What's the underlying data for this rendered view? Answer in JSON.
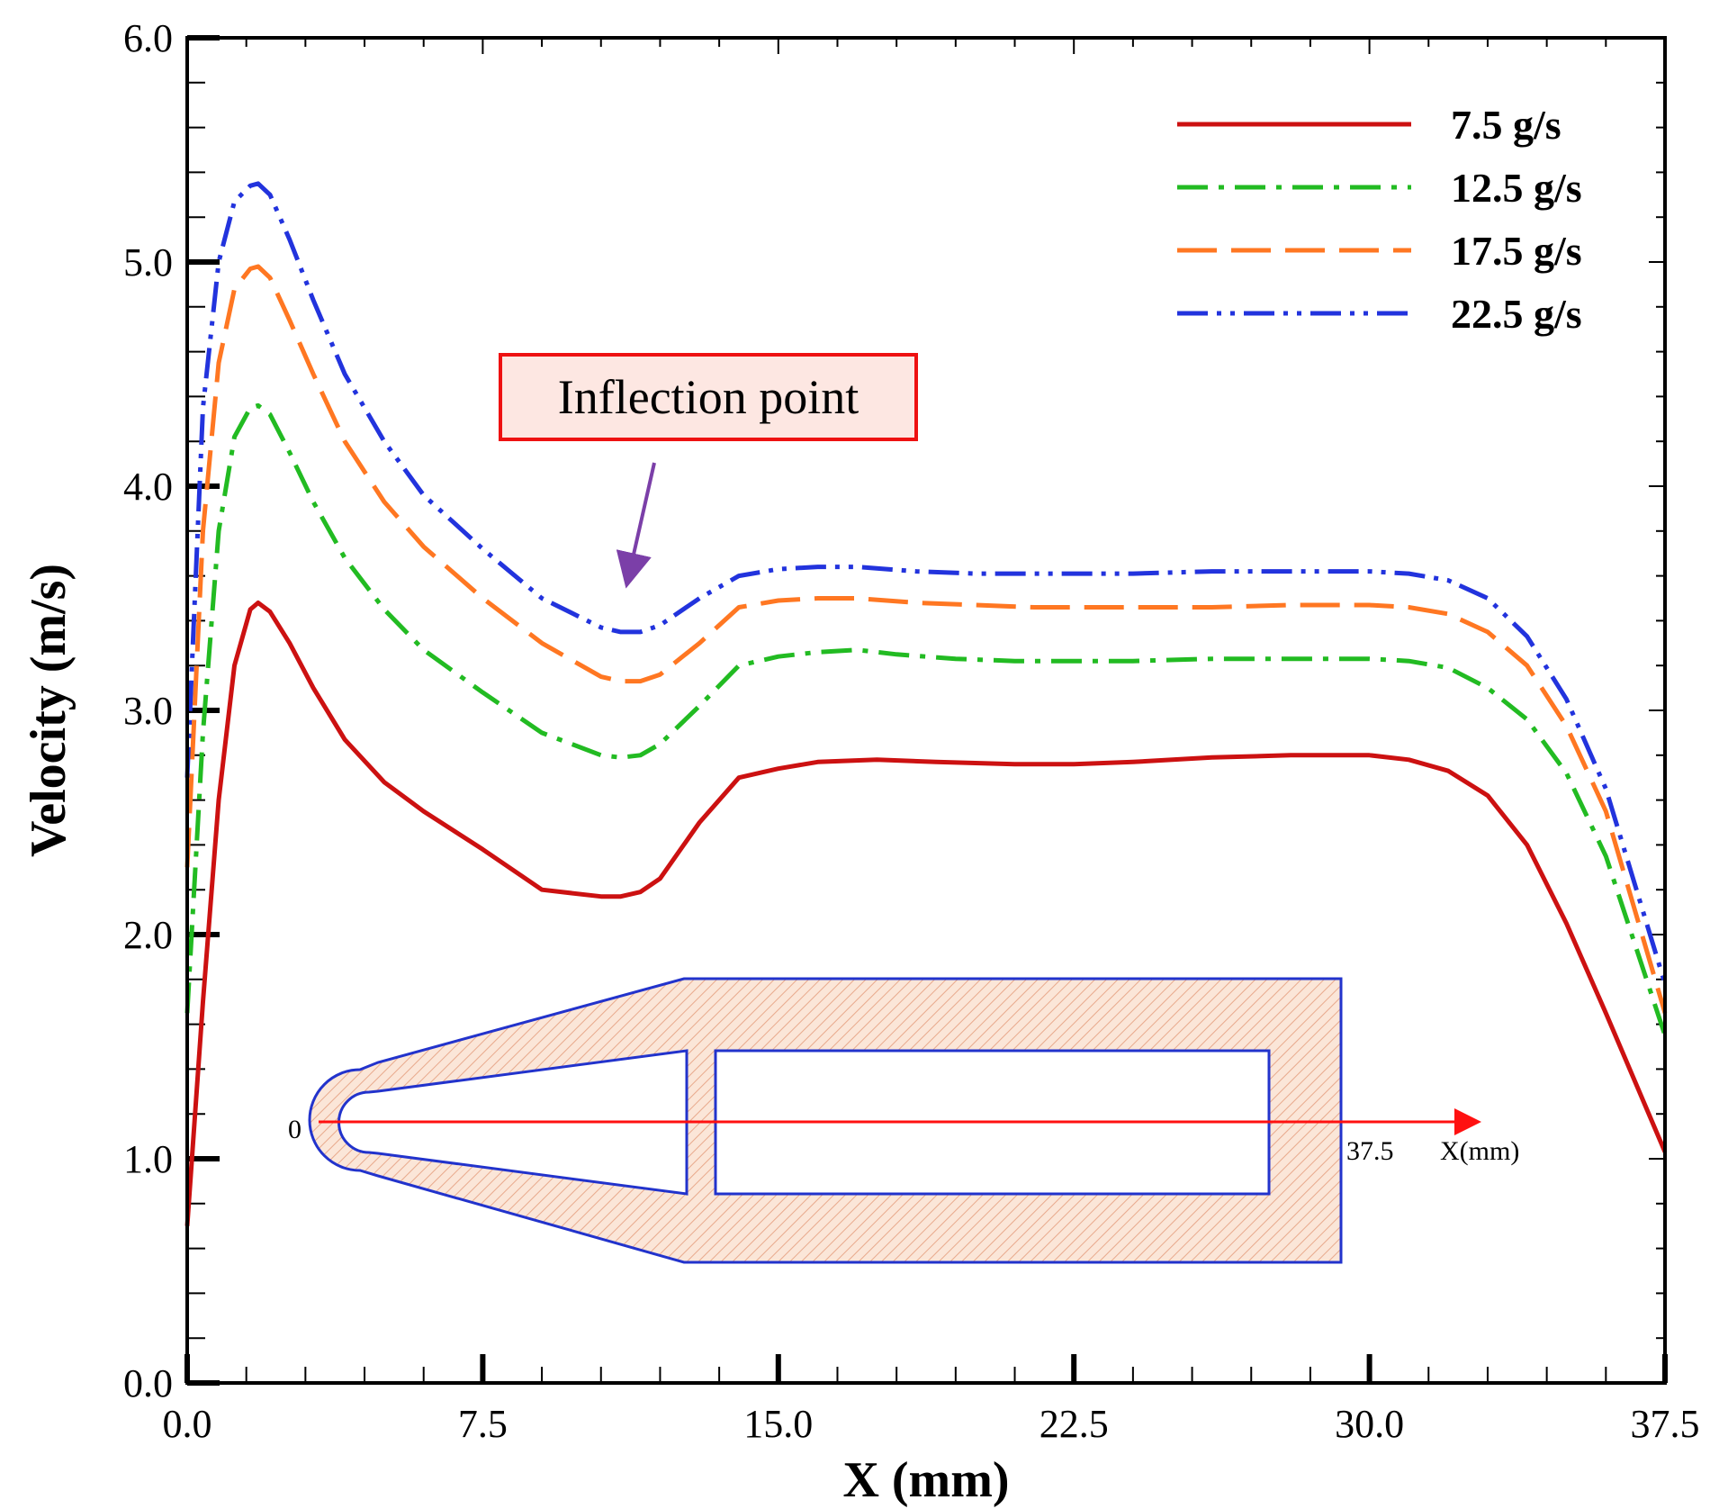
{
  "chart_data": {
    "type": "line",
    "xlabel": "X (mm)",
    "ylabel": "Velocity (m/s)",
    "xlim": [
      0,
      37.5
    ],
    "ylim": [
      0,
      6
    ],
    "x_ticks": [
      "0.0",
      "7.5",
      "15.0",
      "22.5",
      "30.0",
      "37.5"
    ],
    "y_ticks": [
      "0.0",
      "1.0",
      "2.0",
      "3.0",
      "4.0",
      "5.0",
      "6.0"
    ],
    "grid": false,
    "legend": "top-right",
    "series": [
      {
        "name": "7.5 g/s",
        "color": "#cc1111",
        "dash": "solid",
        "x": [
          0,
          0.4,
          0.8,
          1.2,
          1.6,
          1.8,
          2.1,
          2.6,
          3.2,
          4.0,
          5.0,
          6.0,
          7.5,
          9.0,
          10.5,
          11.0,
          11.5,
          12.0,
          13.0,
          14.0,
          15.0,
          16.0,
          17.5,
          19.0,
          21.0,
          22.5,
          24.0,
          26.0,
          28.0,
          30.0,
          31.0,
          32.0,
          33.0,
          34.0,
          35.0,
          36.0,
          37.5
        ],
        "y": [
          0.7,
          1.7,
          2.6,
          3.2,
          3.45,
          3.48,
          3.44,
          3.3,
          3.1,
          2.87,
          2.68,
          2.55,
          2.38,
          2.2,
          2.17,
          2.17,
          2.19,
          2.25,
          2.5,
          2.7,
          2.74,
          2.77,
          2.78,
          2.77,
          2.76,
          2.76,
          2.77,
          2.79,
          2.8,
          2.8,
          2.78,
          2.73,
          2.62,
          2.4,
          2.05,
          1.65,
          1.03
        ]
      },
      {
        "name": "12.5 g/s",
        "color": "#22bb22",
        "dash": "dashdot",
        "x": [
          0,
          0.4,
          0.8,
          1.2,
          1.6,
          1.8,
          2.1,
          2.6,
          3.2,
          4.0,
          5.0,
          6.0,
          7.5,
          9.0,
          10.5,
          11.0,
          11.5,
          12.0,
          13.0,
          14.0,
          15.0,
          16.0,
          17.0,
          18.0,
          19.5,
          21.0,
          22.5,
          24.0,
          26.0,
          28.0,
          30.0,
          31.0,
          32.0,
          33.0,
          34.0,
          35.0,
          36.0,
          37.5
        ],
        "y": [
          1.65,
          2.9,
          3.8,
          4.22,
          4.35,
          4.36,
          4.32,
          4.15,
          3.93,
          3.68,
          3.45,
          3.27,
          3.08,
          2.9,
          2.8,
          2.79,
          2.8,
          2.85,
          3.02,
          3.2,
          3.24,
          3.26,
          3.27,
          3.25,
          3.23,
          3.22,
          3.22,
          3.22,
          3.23,
          3.23,
          3.23,
          3.22,
          3.19,
          3.1,
          2.96,
          2.72,
          2.35,
          1.55
        ]
      },
      {
        "name": "17.5 g/s",
        "color": "#ff7722",
        "dash": "dashed",
        "x": [
          0,
          0.4,
          0.8,
          1.2,
          1.6,
          1.8,
          2.1,
          2.6,
          3.2,
          4.0,
          5.0,
          6.0,
          7.5,
          9.0,
          10.5,
          11.0,
          11.5,
          12.0,
          13.0,
          14.0,
          15.0,
          16.0,
          17.0,
          18.5,
          20.0,
          21.5,
          22.5,
          24.0,
          26.0,
          28.0,
          30.0,
          31.0,
          32.0,
          33.0,
          34.0,
          35.0,
          36.0,
          37.5
        ],
        "y": [
          2.3,
          3.8,
          4.55,
          4.88,
          4.97,
          4.98,
          4.93,
          4.74,
          4.5,
          4.2,
          3.93,
          3.73,
          3.5,
          3.3,
          3.15,
          3.13,
          3.13,
          3.16,
          3.3,
          3.46,
          3.49,
          3.5,
          3.5,
          3.48,
          3.47,
          3.46,
          3.46,
          3.46,
          3.46,
          3.47,
          3.47,
          3.46,
          3.43,
          3.35,
          3.2,
          2.93,
          2.55,
          1.65
        ]
      },
      {
        "name": "22.5 g/s",
        "color": "#2233dd",
        "dash": "dashdotdot",
        "x": [
          0,
          0.4,
          0.8,
          1.2,
          1.6,
          1.8,
          2.1,
          2.6,
          3.2,
          4.0,
          5.0,
          6.0,
          7.5,
          9.0,
          10.5,
          11.0,
          11.5,
          12.0,
          13.0,
          14.0,
          15.0,
          16.0,
          17.0,
          18.5,
          20.0,
          21.5,
          22.5,
          24.0,
          26.0,
          28.0,
          30.0,
          31.0,
          32.0,
          33.0,
          34.0,
          35.0,
          36.0,
          37.5
        ],
        "y": [
          2.7,
          4.35,
          5.0,
          5.27,
          5.34,
          5.35,
          5.3,
          5.1,
          4.83,
          4.5,
          4.2,
          3.96,
          3.72,
          3.5,
          3.37,
          3.35,
          3.35,
          3.38,
          3.5,
          3.6,
          3.63,
          3.64,
          3.64,
          3.62,
          3.61,
          3.61,
          3.61,
          3.61,
          3.62,
          3.62,
          3.62,
          3.61,
          3.58,
          3.5,
          3.33,
          3.05,
          2.65,
          1.78
        ]
      }
    ],
    "annotations": [
      {
        "text": "Inflection point",
        "target_x": 11.2,
        "target_y": 3.55
      }
    ],
    "inset": {
      "origin_label": "0",
      "end_label": "37.5",
      "axis_label": "X(mm)"
    }
  }
}
